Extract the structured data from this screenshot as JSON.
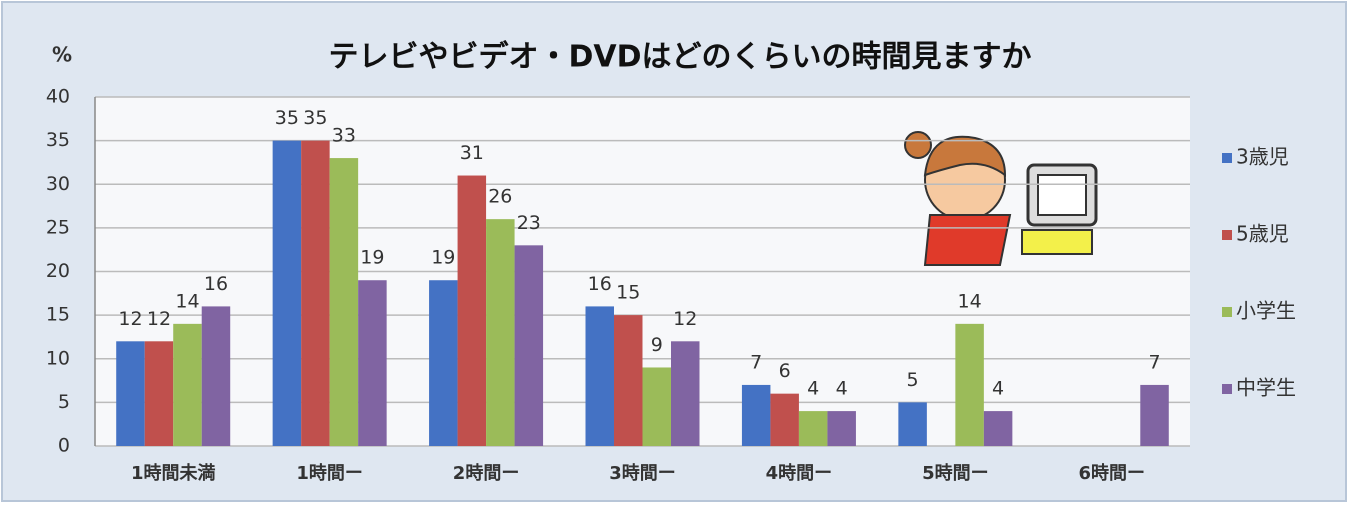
{
  "chart_data": {
    "type": "bar",
    "title": "テレビやビデオ・DVDはどのくらいの時間見ますか",
    "y_label": "%",
    "categories": [
      "1時間未満",
      "1時間ー",
      "2時間ー",
      "3時間ー",
      "4時間ー",
      "5時間ー",
      "6時間ー"
    ],
    "series": [
      {
        "name": "3歳児",
        "color": "#4472c4",
        "values": [
          12,
          35,
          19,
          16,
          7,
          5,
          null
        ]
      },
      {
        "name": "5歳児",
        "color": "#c0504d",
        "values": [
          12,
          35,
          31,
          15,
          6,
          null,
          null
        ]
      },
      {
        "name": "小学生",
        "color": "#9bbb59",
        "values": [
          14,
          33,
          26,
          9,
          4,
          14,
          null
        ]
      },
      {
        "name": "中学生",
        "color": "#8064a2",
        "values": [
          16,
          19,
          23,
          12,
          4,
          4,
          7
        ]
      }
    ],
    "ylim": [
      0,
      40
    ],
    "yticks": [
      0,
      5,
      10,
      15,
      20,
      25,
      30,
      35,
      40
    ],
    "grid": true,
    "legend": "right"
  }
}
